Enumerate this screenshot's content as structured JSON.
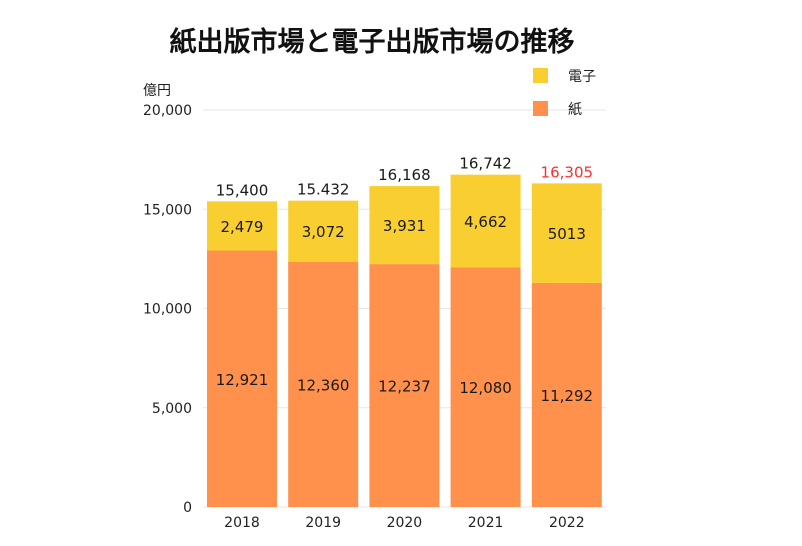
{
  "chart_data": {
    "type": "bar",
    "stacked": true,
    "title": "紙出版市場と電子出版市場の推移",
    "ylabel": "億円",
    "xlabel": "",
    "categories": [
      "2018",
      "2019",
      "2020",
      "2021",
      "2022"
    ],
    "series": [
      {
        "name": "紙",
        "color": "#FF914D",
        "values": [
          12921,
          12360,
          12237,
          12080,
          11292
        ],
        "labels": [
          "12,921",
          "12,360",
          "12,237",
          "12,080",
          "11,292"
        ]
      },
      {
        "name": "電子",
        "color": "#F9CE30",
        "values": [
          2479,
          3072,
          3931,
          4662,
          5013
        ],
        "labels": [
          "2,479",
          "3,072",
          "3,931",
          "4,662",
          "5013"
        ]
      }
    ],
    "totals": {
      "values": [
        15400,
        15432,
        16168,
        16742,
        16305
      ],
      "labels": [
        "15,400",
        "15.432",
        "16,168",
        "16,742",
        "16,305"
      ],
      "highlight_index": 4,
      "highlight_color": "#FF2D2D"
    },
    "ylim": [
      0,
      20000
    ],
    "yticks": [
      0,
      5000,
      10000,
      15000,
      20000
    ],
    "ytick_labels": [
      "0",
      "5,000",
      "10,000",
      "15,000",
      "20,000"
    ],
    "grid": true,
    "legend_position": "top-right"
  }
}
